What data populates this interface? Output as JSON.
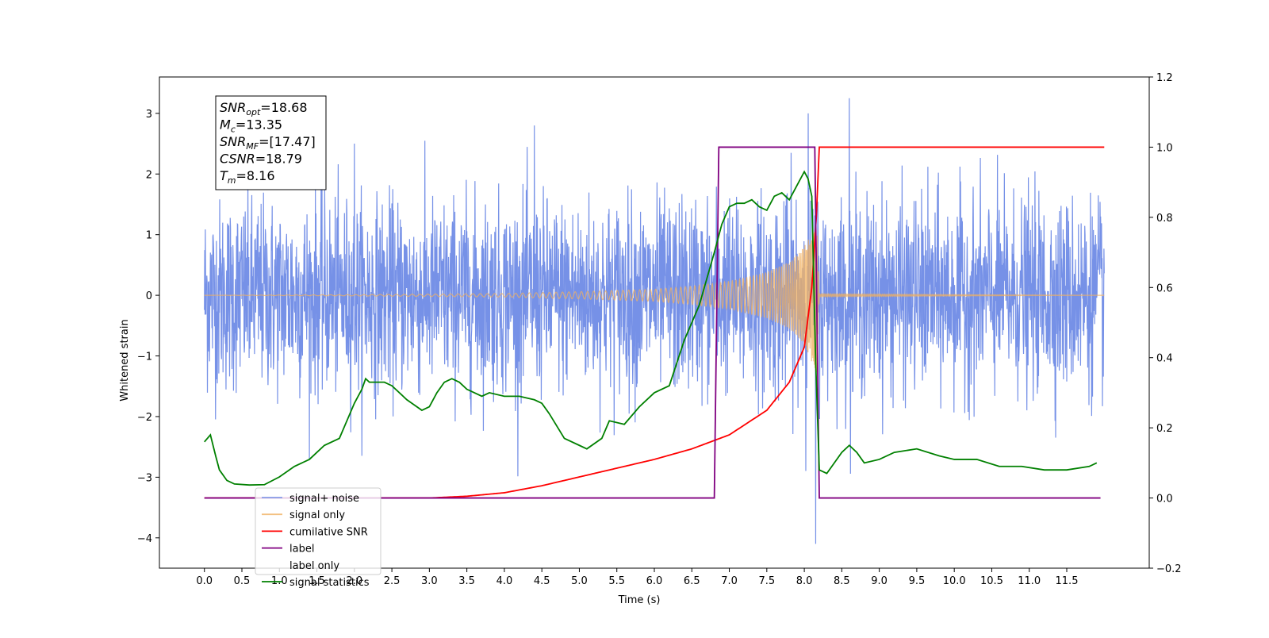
{
  "chart_data": {
    "type": "line",
    "title": "",
    "xlabel": "Time (s)",
    "ylabel": "Whitened strain",
    "xlim": [
      -0.6,
      12.6
    ],
    "ylim": [
      -4.5,
      3.6
    ],
    "y2lim": [
      -0.2,
      1.2
    ],
    "grid": false,
    "legend_position": "lower-left",
    "xticks": [
      0.0,
      0.5,
      1.0,
      1.5,
      2.0,
      2.5,
      3.0,
      3.5,
      4.0,
      4.5,
      5.0,
      5.5,
      6.0,
      6.5,
      7.0,
      7.5,
      8.0,
      8.5,
      9.0,
      9.5,
      10.0,
      10.5,
      11.0,
      11.5
    ],
    "xtick_labels": [
      "0.0",
      "0.5",
      "1.0",
      "1.5",
      "2.0",
      "2.5",
      "3.0",
      "3.5",
      "4.0",
      "4.5",
      "5.0",
      "5.5",
      "6.0",
      "6.5",
      "7.0",
      "7.5",
      "8.0",
      "8.5",
      "9.0",
      "9.5",
      "10.0",
      "10.5",
      "11.0",
      "11.5"
    ],
    "yticks": [
      -4,
      -3,
      -2,
      -1,
      0,
      1,
      2,
      3
    ],
    "ytick_labels": [
      "−4",
      "−3",
      "−2",
      "−1",
      "0",
      "1",
      "2",
      "3"
    ],
    "y2ticks": [
      -0.2,
      0.0,
      0.2,
      0.4,
      0.6,
      0.8,
      1.0,
      1.2
    ],
    "y2tick_labels": [
      "−0.2",
      "0.0",
      "0.2",
      "0.4",
      "0.6",
      "0.8",
      "1.0",
      "1.2"
    ],
    "series": [
      {
        "name": "signal+ noise",
        "axis": "left",
        "color": "#6f8be6",
        "style": "noisy strain, amplitude about ±1.5 with spikes up to about ±3",
        "x_range": [
          0.0,
          12.0
        ],
        "peaks": [
          [
            8.15,
            -4.1
          ],
          [
            8.6,
            3.25
          ],
          [
            8.05,
            3.0
          ],
          [
            2.0,
            2.5
          ],
          [
            4.4,
            2.8
          ]
        ]
      },
      {
        "name": "signal only",
        "axis": "left",
        "color": "#f0b060",
        "style": "chirp waveform with amplitude rising toward merger",
        "x": [
          0.0,
          2.0,
          4.0,
          5.0,
          6.0,
          6.5,
          7.0,
          7.5,
          7.8,
          8.0,
          8.1,
          8.16,
          8.2,
          12.0
        ],
        "envelope": [
          0.0,
          0.01,
          0.03,
          0.06,
          0.1,
          0.15,
          0.23,
          0.38,
          0.55,
          0.8,
          1.1,
          1.4,
          0.02,
          0.0
        ]
      },
      {
        "name": "cumilative SNR",
        "axis": "right",
        "color": "#ff0000",
        "x": [
          0.0,
          3.0,
          3.5,
          4.0,
          4.5,
          5.0,
          5.5,
          6.0,
          6.5,
          7.0,
          7.5,
          7.8,
          8.0,
          8.1,
          8.16,
          8.2,
          12.0
        ],
        "values": [
          0.0,
          0.0,
          0.005,
          0.015,
          0.035,
          0.06,
          0.085,
          0.11,
          0.14,
          0.18,
          0.25,
          0.33,
          0.43,
          0.6,
          0.8,
          1.0,
          1.0
        ]
      },
      {
        "name": "label",
        "axis": "right",
        "color": "#800080",
        "x": [
          0.0,
          6.8,
          6.86,
          8.14,
          8.2,
          11.95
        ],
        "values": [
          0.0,
          0.0,
          1.0,
          1.0,
          0.0,
          0.0
        ]
      },
      {
        "name": "label only",
        "axis": "right",
        "color": "#ffffff",
        "hidden": true,
        "x": [],
        "values": []
      },
      {
        "name": "signal statistics",
        "axis": "right",
        "color": "#008000",
        "x": [
          0.0,
          0.08,
          0.15,
          0.2,
          0.3,
          0.4,
          0.6,
          0.8,
          1.0,
          1.2,
          1.4,
          1.5,
          1.6,
          1.8,
          1.9,
          2.0,
          2.1,
          2.15,
          2.2,
          2.4,
          2.5,
          2.7,
          2.9,
          3.0,
          3.1,
          3.2,
          3.3,
          3.4,
          3.5,
          3.6,
          3.7,
          3.8,
          4.0,
          4.2,
          4.4,
          4.5,
          4.6,
          4.8,
          5.0,
          5.1,
          5.3,
          5.4,
          5.6,
          5.8,
          6.0,
          6.2,
          6.4,
          6.6,
          6.8,
          6.9,
          7.0,
          7.1,
          7.2,
          7.3,
          7.4,
          7.5,
          7.6,
          7.7,
          7.8,
          7.9,
          8.0,
          8.05,
          8.1,
          8.15,
          8.2,
          8.3,
          8.4,
          8.5,
          8.6,
          8.7,
          8.8,
          9.0,
          9.2,
          9.5,
          9.8,
          10.0,
          10.3,
          10.6,
          10.9,
          11.2,
          11.5,
          11.8,
          11.9
        ],
        "values": [
          0.16,
          0.18,
          0.12,
          0.08,
          0.05,
          0.04,
          0.037,
          0.038,
          0.06,
          0.09,
          0.11,
          0.13,
          0.15,
          0.17,
          0.22,
          0.27,
          0.31,
          0.34,
          0.33,
          0.33,
          0.32,
          0.28,
          0.25,
          0.26,
          0.3,
          0.33,
          0.34,
          0.33,
          0.31,
          0.3,
          0.29,
          0.3,
          0.29,
          0.29,
          0.28,
          0.27,
          0.24,
          0.17,
          0.15,
          0.14,
          0.17,
          0.22,
          0.21,
          0.26,
          0.3,
          0.32,
          0.45,
          0.55,
          0.7,
          0.78,
          0.83,
          0.84,
          0.84,
          0.85,
          0.83,
          0.82,
          0.86,
          0.87,
          0.85,
          0.89,
          0.93,
          0.91,
          0.86,
          0.4,
          0.08,
          0.07,
          0.1,
          0.13,
          0.15,
          0.13,
          0.1,
          0.11,
          0.13,
          0.14,
          0.12,
          0.11,
          0.11,
          0.09,
          0.09,
          0.08,
          0.08,
          0.09,
          0.1
        ]
      }
    ],
    "annotations": [
      {
        "base": "SNR",
        "sub": "opt",
        "value": "=18.68"
      },
      {
        "base": "M",
        "sub": "c",
        "value": "=13.35"
      },
      {
        "base": "SNR",
        "sub": "MF",
        "value": "=[17.47]"
      },
      {
        "base": "CSNR",
        "sub": "",
        "value": "=18.79"
      },
      {
        "base": "T",
        "sub": "m",
        "value": "=8.16"
      }
    ]
  }
}
